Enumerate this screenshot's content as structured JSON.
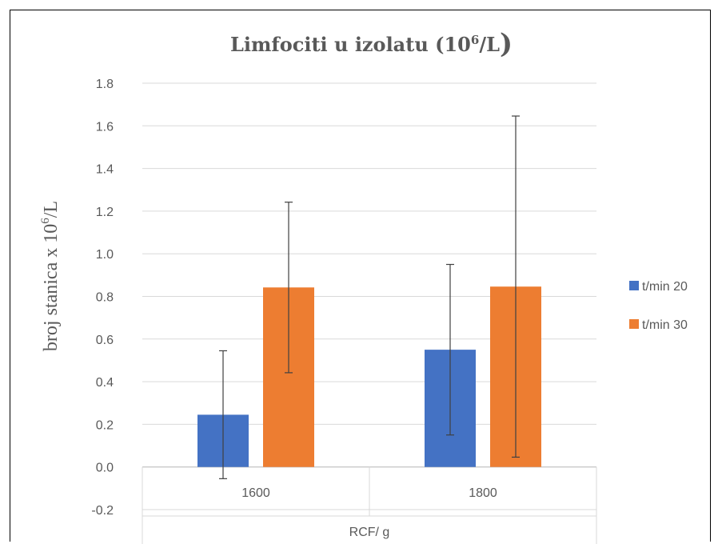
{
  "chart_data": {
    "type": "bar",
    "title": "Limfociti u izolatu (10",
    "title_superscript": "6",
    "title_suffix": "/L",
    "title_paren": ")",
    "ylabel": "broj stanica x 10",
    "ylabel_superscript": "6",
    "ylabel_suffix": "/L",
    "xlabel": "RCF/ g",
    "categories": [
      "1600",
      "1800"
    ],
    "ylim": [
      -0.2,
      1.8
    ],
    "yticks": [
      "-0.2",
      "0.0",
      "0.2",
      "0.4",
      "0.6",
      "0.8",
      "1.0",
      "1.2",
      "1.4",
      "1.6",
      "1.8"
    ],
    "legend_position": "right",
    "grid": true,
    "series": [
      {
        "name": "t/min 20",
        "color": "#4472c4",
        "values": [
          0.245,
          0.55
        ],
        "errors": [
          0.3,
          0.4
        ]
      },
      {
        "name": "t/min 30",
        "color": "#ed7d31",
        "values": [
          0.842,
          0.846
        ],
        "errors": [
          0.4,
          0.8
        ]
      }
    ]
  }
}
